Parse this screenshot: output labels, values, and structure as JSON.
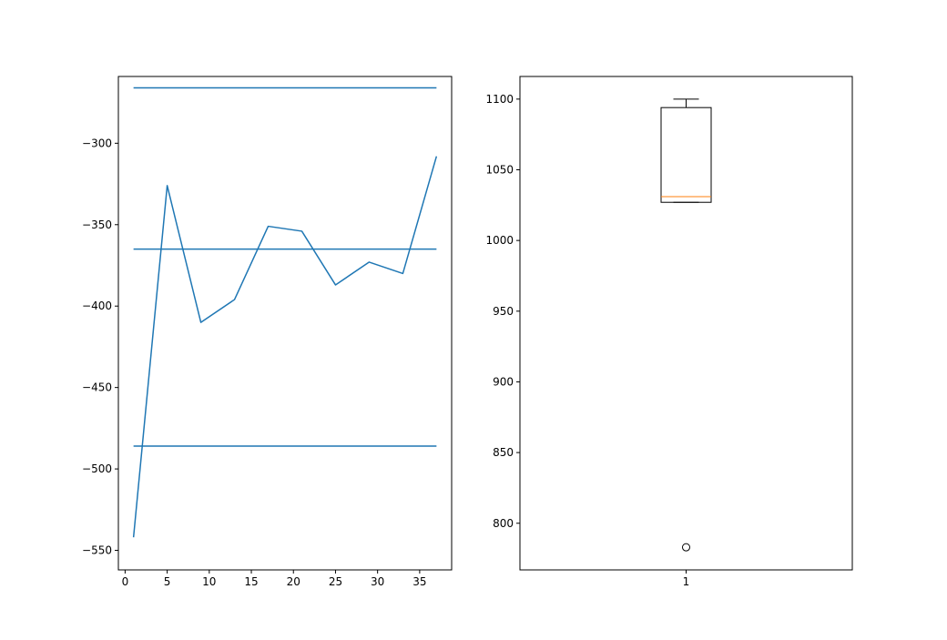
{
  "chart_data": [
    {
      "type": "line",
      "xlim": [
        -0.8,
        38.8
      ],
      "ylim": [
        -562,
        -259
      ],
      "xticks": [
        0,
        5,
        10,
        15,
        20,
        25,
        30,
        35
      ],
      "xtick_labels": [
        "0",
        "5",
        "10",
        "15",
        "20",
        "25",
        "30",
        "35"
      ],
      "yticks": [
        -550,
        -500,
        -450,
        -400,
        -350,
        -300
      ],
      "ytick_labels": [
        "−550",
        "−500",
        "−450",
        "−400",
        "−350",
        "−300"
      ],
      "grid": false,
      "line_color": "#1f77b4",
      "series": [
        {
          "x": [
            1,
            5,
            9,
            13,
            17,
            21,
            25,
            29,
            33,
            37
          ],
          "values": [
            -542,
            -326,
            -410,
            -396,
            -351,
            -354,
            -387,
            -373,
            -380,
            -308
          ]
        }
      ],
      "hlines": [
        {
          "y": -266,
          "xmin": 1,
          "xmax": 37
        },
        {
          "y": -365,
          "xmin": 1,
          "xmax": 37
        },
        {
          "y": -486,
          "xmin": 1,
          "xmax": 37
        }
      ]
    },
    {
      "type": "box",
      "categories": [
        "1"
      ],
      "xlim": [
        0.5,
        1.5
      ],
      "ylim": [
        767,
        1116
      ],
      "yticks": [
        800,
        850,
        900,
        950,
        1000,
        1050,
        1100
      ],
      "ytick_labels": [
        "800",
        "850",
        "900",
        "950",
        "1000",
        "1050",
        "1100"
      ],
      "grid": false,
      "box": {
        "q1": 1027,
        "median": 1031,
        "q3": 1094,
        "whisker_low": 1027,
        "whisker_high": 1100,
        "fliers": [
          783
        ]
      },
      "box_color": "#000000",
      "median_color": "#ff7f0e"
    }
  ]
}
